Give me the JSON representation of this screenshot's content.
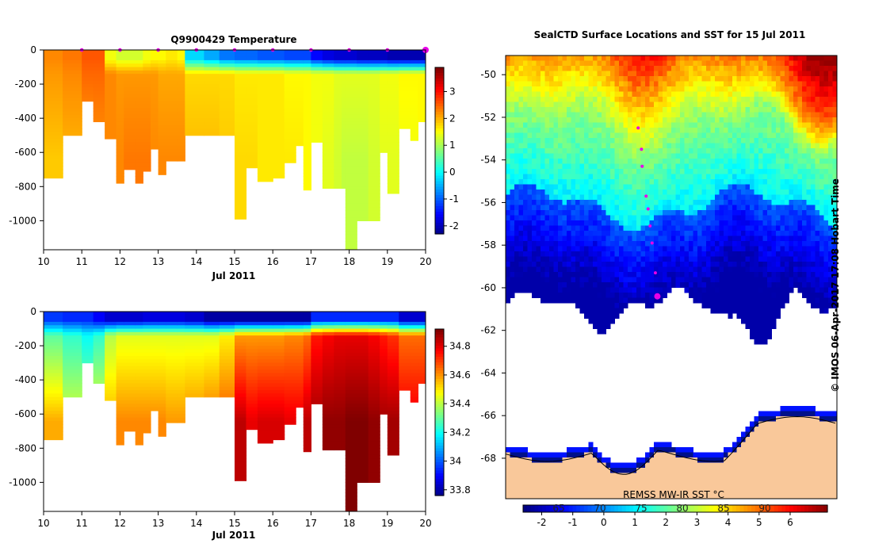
{
  "chart_data": [
    {
      "type": "heatmap",
      "title": "Q9900429  Temperature",
      "xlabel": "Jul 2011",
      "ylabel": "",
      "x_ticks": [
        "10",
        "11",
        "12",
        "13",
        "14",
        "15",
        "16",
        "17",
        "18",
        "19",
        "20"
      ],
      "y_ticks": [
        "0",
        "-200",
        "-400",
        "-600",
        "-800",
        "-1000"
      ],
      "xlim": [
        10,
        20
      ],
      "ylim": [
        -1170,
        0
      ],
      "colorbar": {
        "min": -2.3,
        "max": 3.9,
        "ticks": [
          "-2",
          "-1",
          "0",
          "1",
          "2",
          "3"
        ],
        "colormap": "jet"
      },
      "profile_markers_x": [
        11,
        12,
        13,
        14,
        15,
        16,
        17,
        18,
        19,
        20
      ],
      "profiles": [
        {
          "x": 10.0,
          "depth": 750,
          "surf": 2.3,
          "mixed": 2.2,
          "deep": 1.9
        },
        {
          "x": 10.5,
          "depth": 500,
          "surf": 2.4,
          "mixed": 2.3,
          "deep": 2.0
        },
        {
          "x": 11.0,
          "depth": 300,
          "surf": 2.6,
          "mixed": 2.5,
          "deep": 2.1
        },
        {
          "x": 11.3,
          "depth": 420,
          "surf": 2.6,
          "mixed": 2.5,
          "deep": 2.2
        },
        {
          "x": 11.6,
          "depth": 520,
          "surf": 1.5,
          "mixed": 2.3,
          "deep": 2.3
        },
        {
          "x": 11.9,
          "depth": 780,
          "surf": 1.3,
          "mixed": 2.2,
          "deep": 2.3
        },
        {
          "x": 12.1,
          "depth": 700,
          "surf": 1.3,
          "mixed": 2.2,
          "deep": 2.4
        },
        {
          "x": 12.4,
          "depth": 780,
          "surf": 1.3,
          "mixed": 2.2,
          "deep": 2.4
        },
        {
          "x": 12.6,
          "depth": 710,
          "surf": 1.5,
          "mixed": 2.2,
          "deep": 2.4
        },
        {
          "x": 12.8,
          "depth": 580,
          "surf": 1.6,
          "mixed": 2.2,
          "deep": 2.3
        },
        {
          "x": 13.0,
          "depth": 730,
          "surf": 1.6,
          "mixed": 2.1,
          "deep": 2.3
        },
        {
          "x": 13.2,
          "depth": 650,
          "surf": 1.7,
          "mixed": 2.1,
          "deep": 2.3
        },
        {
          "x": 13.5,
          "depth": 650,
          "surf": 1.6,
          "mixed": 2.1,
          "deep": 2.3
        },
        {
          "x": 13.7,
          "depth": 500,
          "surf": -0.2,
          "mixed": 1.8,
          "deep": 2.0
        },
        {
          "x": 14.2,
          "depth": 500,
          "surf": -0.5,
          "mixed": 1.8,
          "deep": 2.0
        },
        {
          "x": 14.6,
          "depth": 500,
          "surf": -0.8,
          "mixed": 1.8,
          "deep": 1.9
        },
        {
          "x": 15.0,
          "depth": 990,
          "surf": -0.9,
          "mixed": 1.7,
          "deep": 1.8
        },
        {
          "x": 15.3,
          "depth": 690,
          "surf": -0.9,
          "mixed": 1.7,
          "deep": 1.8
        },
        {
          "x": 15.6,
          "depth": 770,
          "surf": -1.0,
          "mixed": 1.7,
          "deep": 1.7
        },
        {
          "x": 16.0,
          "depth": 750,
          "surf": -1.0,
          "mixed": 1.7,
          "deep": 1.7
        },
        {
          "x": 16.3,
          "depth": 660,
          "surf": -1.1,
          "mixed": 1.6,
          "deep": 1.7
        },
        {
          "x": 16.6,
          "depth": 560,
          "surf": -1.1,
          "mixed": 1.6,
          "deep": 1.7
        },
        {
          "x": 16.8,
          "depth": 820,
          "surf": -1.1,
          "mixed": 1.6,
          "deep": 1.6
        },
        {
          "x": 17.0,
          "depth": 540,
          "surf": -1.5,
          "mixed": 1.5,
          "deep": 1.5
        },
        {
          "x": 17.3,
          "depth": 810,
          "surf": -1.7,
          "mixed": 1.5,
          "deep": 1.4
        },
        {
          "x": 17.6,
          "depth": 810,
          "surf": -1.8,
          "mixed": 1.4,
          "deep": 1.3
        },
        {
          "x": 17.8,
          "depth": 810,
          "surf": -1.8,
          "mixed": 1.4,
          "deep": 1.2
        },
        {
          "x": 17.9,
          "depth": 1170,
          "surf": -1.8,
          "mixed": 1.4,
          "deep": 1.2
        },
        {
          "x": 18.2,
          "depth": 1000,
          "surf": -1.9,
          "mixed": 1.4,
          "deep": 1.2
        },
        {
          "x": 18.5,
          "depth": 1000,
          "surf": -1.9,
          "mixed": 1.4,
          "deep": 1.3
        },
        {
          "x": 18.8,
          "depth": 600,
          "surf": -1.9,
          "mixed": 1.5,
          "deep": 1.4
        },
        {
          "x": 19.0,
          "depth": 840,
          "surf": -2.0,
          "mixed": 1.5,
          "deep": 1.4
        },
        {
          "x": 19.3,
          "depth": 460,
          "surf": -2.0,
          "mixed": 1.6,
          "deep": 1.5
        },
        {
          "x": 19.6,
          "depth": 530,
          "surf": -2.0,
          "mixed": 1.6,
          "deep": 1.5
        },
        {
          "x": 19.8,
          "depth": 420,
          "surf": -2.0,
          "mixed": 1.6,
          "deep": 1.6
        }
      ]
    },
    {
      "type": "heatmap",
      "title": "",
      "xlabel": "Jul 2011",
      "ylabel": "",
      "x_ticks": [
        "10",
        "11",
        "12",
        "13",
        "14",
        "15",
        "16",
        "17",
        "18",
        "19",
        "20"
      ],
      "y_ticks": [
        "0",
        "-200",
        "-400",
        "-600",
        "-800",
        "-1000"
      ],
      "xlim": [
        10,
        20
      ],
      "ylim": [
        -1170,
        0
      ],
      "colorbar": {
        "min": 33.76,
        "max": 34.92,
        "ticks": [
          "33.8",
          "34",
          "34.2",
          "34.4",
          "34.6",
          "34.8"
        ],
        "colormap": "jet"
      },
      "profiles": [
        {
          "x": 10.0,
          "depth": 750,
          "surf": 33.97,
          "mixed": 34.3,
          "deep": 34.58
        },
        {
          "x": 10.5,
          "depth": 500,
          "surf": 33.95,
          "mixed": 34.25,
          "deep": 34.45
        },
        {
          "x": 11.0,
          "depth": 300,
          "surf": 33.95,
          "mixed": 34.2,
          "deep": 34.4
        },
        {
          "x": 11.3,
          "depth": 420,
          "surf": 33.9,
          "mixed": 34.25,
          "deep": 34.48
        },
        {
          "x": 11.6,
          "depth": 520,
          "surf": 33.85,
          "mixed": 34.4,
          "deep": 34.58
        },
        {
          "x": 11.9,
          "depth": 780,
          "surf": 33.85,
          "mixed": 34.45,
          "deep": 34.62
        },
        {
          "x": 12.1,
          "depth": 700,
          "surf": 33.85,
          "mixed": 34.45,
          "deep": 34.62
        },
        {
          "x": 12.4,
          "depth": 780,
          "surf": 33.85,
          "mixed": 34.45,
          "deep": 34.62
        },
        {
          "x": 12.6,
          "depth": 710,
          "surf": 33.87,
          "mixed": 34.45,
          "deep": 34.62
        },
        {
          "x": 12.8,
          "depth": 580,
          "surf": 33.87,
          "mixed": 34.45,
          "deep": 34.62
        },
        {
          "x": 13.0,
          "depth": 730,
          "surf": 33.87,
          "mixed": 34.45,
          "deep": 34.62
        },
        {
          "x": 13.2,
          "depth": 650,
          "surf": 33.87,
          "mixed": 34.45,
          "deep": 34.6
        },
        {
          "x": 13.5,
          "depth": 650,
          "surf": 33.87,
          "mixed": 34.45,
          "deep": 34.6
        },
        {
          "x": 13.7,
          "depth": 500,
          "surf": 33.85,
          "mixed": 34.45,
          "deep": 34.62
        },
        {
          "x": 14.2,
          "depth": 500,
          "surf": 33.8,
          "mixed": 34.45,
          "deep": 34.65
        },
        {
          "x": 14.6,
          "depth": 500,
          "surf": 33.8,
          "mixed": 34.5,
          "deep": 34.68
        },
        {
          "x": 15.0,
          "depth": 990,
          "surf": 33.8,
          "mixed": 34.6,
          "deep": 34.85
        },
        {
          "x": 15.3,
          "depth": 690,
          "surf": 33.8,
          "mixed": 34.6,
          "deep": 34.8
        },
        {
          "x": 15.6,
          "depth": 770,
          "surf": 33.8,
          "mixed": 34.6,
          "deep": 34.82
        },
        {
          "x": 16.0,
          "depth": 750,
          "surf": 33.8,
          "mixed": 34.6,
          "deep": 34.82
        },
        {
          "x": 16.3,
          "depth": 660,
          "surf": 33.8,
          "mixed": 34.62,
          "deep": 34.8
        },
        {
          "x": 16.6,
          "depth": 560,
          "surf": 33.8,
          "mixed": 34.62,
          "deep": 34.8
        },
        {
          "x": 16.8,
          "depth": 820,
          "surf": 33.8,
          "mixed": 34.65,
          "deep": 34.85
        },
        {
          "x": 17.0,
          "depth": 540,
          "surf": 33.95,
          "mixed": 34.75,
          "deep": 34.88
        },
        {
          "x": 17.3,
          "depth": 810,
          "surf": 33.95,
          "mixed": 34.78,
          "deep": 34.9
        },
        {
          "x": 17.6,
          "depth": 810,
          "surf": 33.95,
          "mixed": 34.8,
          "deep": 34.9
        },
        {
          "x": 17.8,
          "depth": 810,
          "surf": 33.95,
          "mixed": 34.8,
          "deep": 34.9
        },
        {
          "x": 17.9,
          "depth": 1170,
          "surf": 33.95,
          "mixed": 34.8,
          "deep": 34.92
        },
        {
          "x": 18.2,
          "depth": 1000,
          "surf": 33.95,
          "mixed": 34.8,
          "deep": 34.92
        },
        {
          "x": 18.5,
          "depth": 1000,
          "surf": 33.95,
          "mixed": 34.78,
          "deep": 34.9
        },
        {
          "x": 18.8,
          "depth": 600,
          "surf": 33.95,
          "mixed": 34.75,
          "deep": 34.88
        },
        {
          "x": 19.0,
          "depth": 840,
          "surf": 33.95,
          "mixed": 34.72,
          "deep": 34.88
        },
        {
          "x": 19.3,
          "depth": 460,
          "surf": 33.85,
          "mixed": 34.65,
          "deep": 34.8
        },
        {
          "x": 19.6,
          "depth": 530,
          "surf": 33.85,
          "mixed": 34.65,
          "deep": 34.8
        },
        {
          "x": 19.8,
          "depth": 420,
          "surf": 33.85,
          "mixed": 34.65,
          "deep": 34.8
        }
      ]
    },
    {
      "type": "heatmap",
      "title": "SealCTD Surface Locations and SST for 15 Jul 2011",
      "subtitle": "REMSS MW-IR SST °C",
      "xlabel": "",
      "ylabel": "",
      "y_ticks": [
        "-50",
        "-52",
        "-54",
        "-56",
        "-58",
        "-60",
        "-62",
        "-64",
        "-66",
        "-68"
      ],
      "ylim": [
        -69.9,
        -49.1
      ],
      "xlim": [
        48,
        98
      ],
      "colorbar": {
        "min": -2.6,
        "max": 7.2,
        "ticks": [
          "-2",
          "-1",
          "0",
          "1",
          "2",
          "3",
          "4",
          "5",
          "6"
        ],
        "overlay_ticks": [
          "65",
          "70",
          "75",
          "80",
          "85",
          "90"
        ],
        "colormap": "jet"
      },
      "fronts_lat": {
        "north": -52.5,
        "south": -56.2,
        "ice_edge": -61.0,
        "coast": -67.8
      },
      "track_points": [
        {
          "lon": 68.0,
          "lat": -52.5
        },
        {
          "lon": 68.5,
          "lat": -53.5
        },
        {
          "lon": 68.6,
          "lat": -54.3
        },
        {
          "lon": 69.2,
          "lat": -55.7
        },
        {
          "lon": 69.5,
          "lat": -56.3
        },
        {
          "lon": 69.8,
          "lat": -57.1
        },
        {
          "lon": 70.1,
          "lat": -57.9
        },
        {
          "lon": 70.6,
          "lat": -59.3
        },
        {
          "lon": 70.9,
          "lat": -60.4
        }
      ]
    }
  ],
  "credit": "© IMOS 06-Apr-2017 17:08 Hobart Time",
  "colors": {
    "land": "#f9c89a",
    "marker": "#e800e8",
    "coast_dark": "#00108a",
    "axis": "#000000"
  }
}
